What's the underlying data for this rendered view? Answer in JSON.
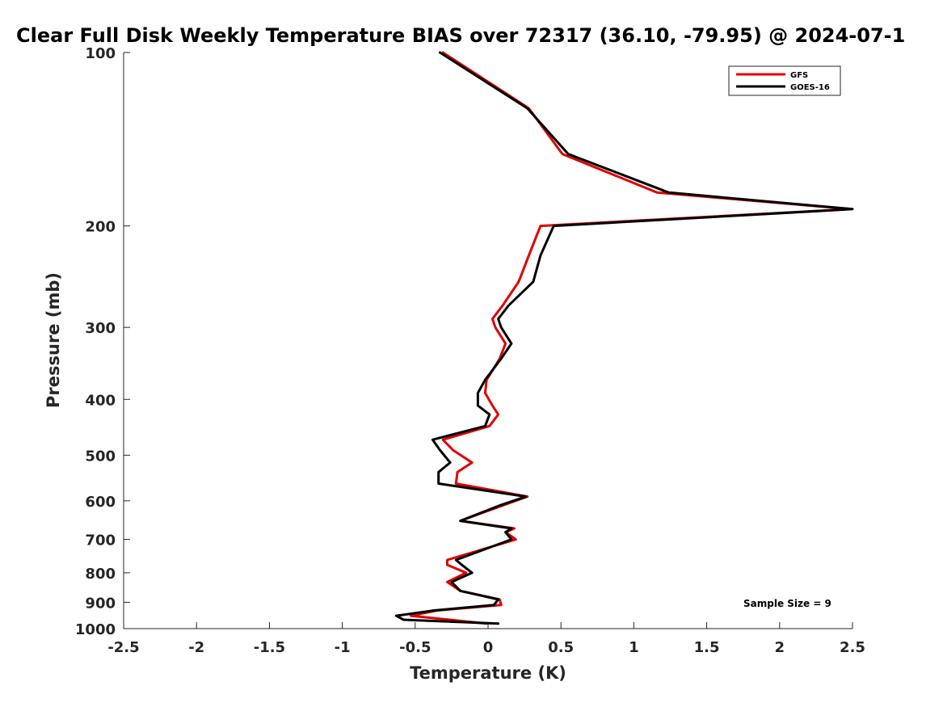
{
  "chart_data": {
    "type": "line",
    "title": "Clear Full Disk Weekly Temperature BIAS over 72317 (36.10, -79.95) @ 2024-07-1",
    "xlabel": "Temperature (K)",
    "ylabel": "Pressure (mb)",
    "xlim": [
      -2.5,
      2.5
    ],
    "ylim": [
      100,
      1000
    ],
    "y_scale": "log",
    "y_reversed": true,
    "grid": false,
    "legend_position": "top-right",
    "x_ticks": [
      "-2.5",
      "-2",
      "-1.5",
      "-1",
      "-0.5",
      "0",
      "0.5",
      "1",
      "1.5",
      "2",
      "2.5"
    ],
    "y_ticks": [
      "100",
      "200",
      "300",
      "400",
      "500",
      "600",
      "700",
      "800",
      "900",
      "1000"
    ],
    "annotation": "Sample Size = 9",
    "series": [
      {
        "name": "GFS",
        "color": "#e00000",
        "points": [
          [
            -0.31,
            100
          ],
          [
            0.28,
            125
          ],
          [
            0.51,
            150
          ],
          [
            1.16,
            175
          ],
          [
            2.49,
            187
          ],
          [
            0.36,
            200
          ],
          [
            0.28,
            225
          ],
          [
            0.21,
            250
          ],
          [
            0.1,
            275
          ],
          [
            0.03,
            290
          ],
          [
            0.05,
            300
          ],
          [
            0.12,
            320
          ],
          [
            0.08,
            340
          ],
          [
            -0.01,
            370
          ],
          [
            -0.02,
            390
          ],
          [
            0.03,
            410
          ],
          [
            0.07,
            425
          ],
          [
            0.01,
            445
          ],
          [
            -0.31,
            470
          ],
          [
            -0.24,
            490
          ],
          [
            -0.11,
            515
          ],
          [
            -0.21,
            535
          ],
          [
            -0.22,
            560
          ],
          [
            0.27,
            590
          ],
          [
            0.11,
            610
          ],
          [
            -0.19,
            650
          ],
          [
            0.18,
            670
          ],
          [
            0.12,
            680
          ],
          [
            0.19,
            700
          ],
          [
            -0.28,
            760
          ],
          [
            -0.28,
            775
          ],
          [
            -0.15,
            800
          ],
          [
            -0.28,
            830
          ],
          [
            -0.19,
            860
          ],
          [
            0.08,
            890
          ],
          [
            0.09,
            910
          ],
          [
            -0.35,
            930
          ],
          [
            -0.53,
            950
          ],
          [
            -0.01,
            980
          ]
        ]
      },
      {
        "name": "GOES-16",
        "color": "#000000",
        "points": [
          [
            -0.33,
            100
          ],
          [
            0.27,
            125
          ],
          [
            0.55,
            150
          ],
          [
            1.24,
            175
          ],
          [
            2.5,
            187
          ],
          [
            0.45,
            200
          ],
          [
            0.36,
            225
          ],
          [
            0.31,
            250
          ],
          [
            0.14,
            275
          ],
          [
            0.07,
            290
          ],
          [
            0.09,
            300
          ],
          [
            0.16,
            320
          ],
          [
            0.09,
            340
          ],
          [
            -0.02,
            370
          ],
          [
            -0.07,
            390
          ],
          [
            -0.07,
            410
          ],
          [
            0.01,
            425
          ],
          [
            -0.02,
            445
          ],
          [
            -0.38,
            470
          ],
          [
            -0.33,
            490
          ],
          [
            -0.26,
            515
          ],
          [
            -0.34,
            535
          ],
          [
            -0.34,
            560
          ],
          [
            0.26,
            590
          ],
          [
            0.09,
            610
          ],
          [
            -0.19,
            650
          ],
          [
            0.16,
            670
          ],
          [
            0.12,
            680
          ],
          [
            0.16,
            700
          ],
          [
            -0.22,
            760
          ],
          [
            -0.18,
            775
          ],
          [
            -0.11,
            800
          ],
          [
            -0.25,
            830
          ],
          [
            -0.19,
            860
          ],
          [
            0.07,
            890
          ],
          [
            0.04,
            910
          ],
          [
            -0.37,
            930
          ],
          [
            -0.63,
            950
          ],
          [
            -0.58,
            965
          ],
          [
            0.07,
            980
          ]
        ]
      }
    ]
  }
}
